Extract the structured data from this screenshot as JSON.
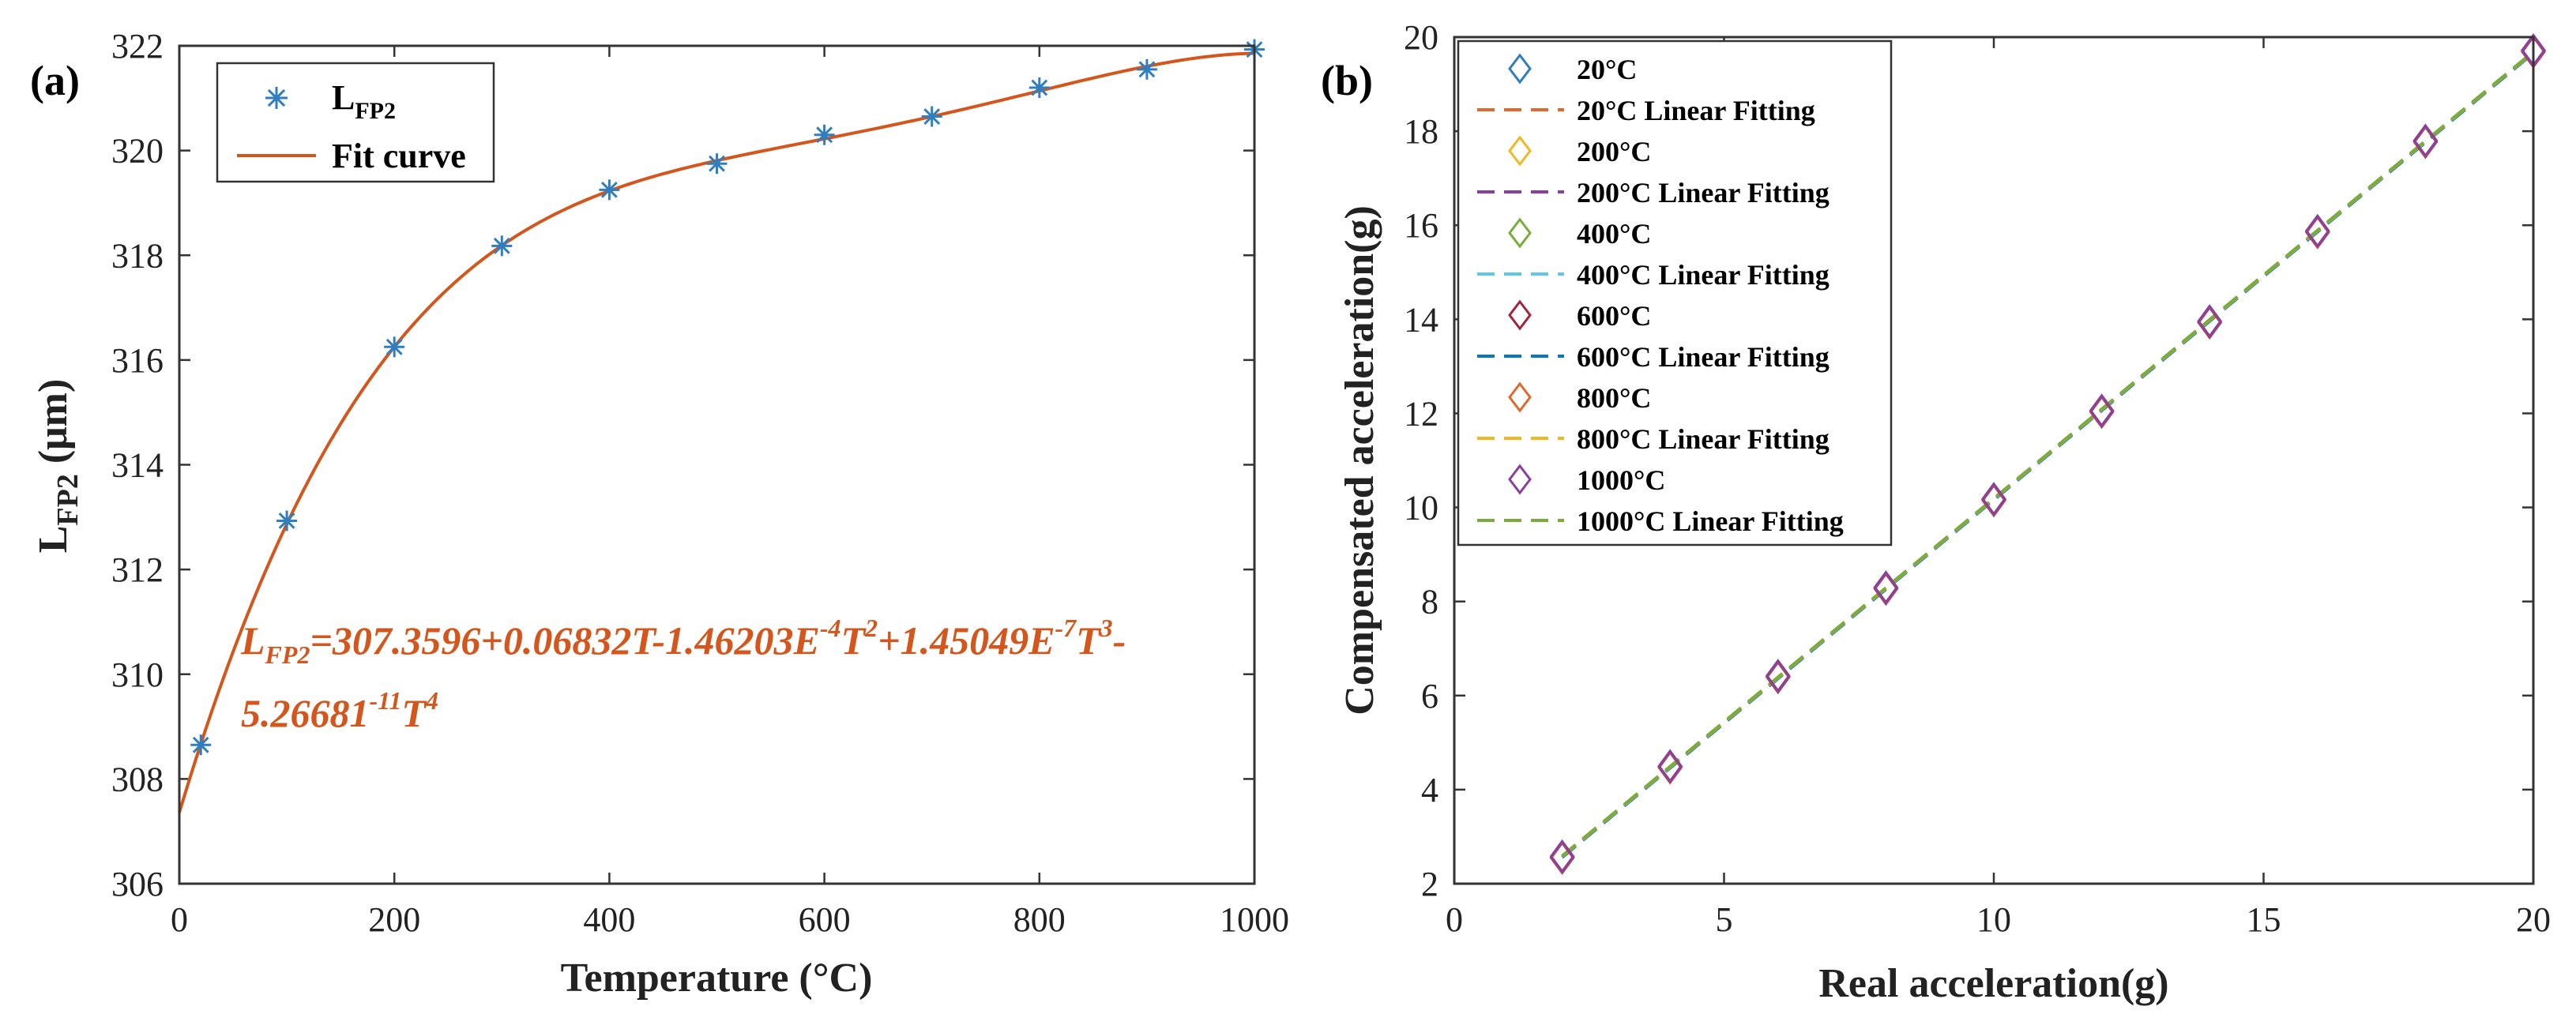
{
  "chart_data": [
    {
      "panel": "(a)",
      "type": "scatter",
      "xlabel": "Temperature (°C)",
      "ylabel_main": "L",
      "ylabel_sub": "FP2",
      "ylabel_unit": " (μm)",
      "xlim": [
        0,
        1000
      ],
      "ylim": [
        306,
        322
      ],
      "xticks": [
        0,
        200,
        400,
        600,
        800,
        1000
      ],
      "yticks": [
        306,
        308,
        310,
        312,
        314,
        316,
        318,
        320,
        322
      ],
      "series": [
        {
          "name": "LFP2",
          "legend_main": "L",
          "legend_sub": "FP2",
          "marker": "asterisk",
          "color": "#2f7ebf",
          "x": [
            20,
            100,
            200,
            300,
            400,
            500,
            600,
            700,
            800,
            900,
            1000
          ],
          "y": [
            308.65,
            312.93,
            316.25,
            318.18,
            319.25,
            319.75,
            320.3,
            320.65,
            321.2,
            321.55,
            321.93
          ]
        },
        {
          "name": "Fit curve",
          "type": "line",
          "color": "#d4561c",
          "coefficients": [
            307.3596,
            0.06832,
            -0.000146203,
            1.45049e-07,
            -5.26681e-11
          ]
        }
      ],
      "equation": {
        "line1": [
          {
            "t": "L",
            "s": "n"
          },
          {
            "t": "FP2",
            "s": "sub"
          },
          {
            "t": "=307.3596+0.06832T-1.46203E",
            "s": "n"
          },
          {
            "t": "-4",
            "s": "sup"
          },
          {
            "t": "T",
            "s": "n"
          },
          {
            "t": "2",
            "s": "sup"
          },
          {
            "t": "+1.45049E",
            "s": "n"
          },
          {
            "t": "-7",
            "s": "sup"
          },
          {
            "t": "T",
            "s": "n"
          },
          {
            "t": "3",
            "s": "sup"
          },
          {
            "t": "-",
            "s": "n"
          }
        ],
        "line2": [
          {
            "t": "5.26681",
            "s": "n"
          },
          {
            "t": "-11",
            "s": "sup"
          },
          {
            "t": "T",
            "s": "n"
          },
          {
            "t": "4",
            "s": "sup"
          }
        ]
      }
    },
    {
      "panel": "(b)",
      "type": "scatter",
      "xlabel": "Real acceleration(g)",
      "ylabel": "Compensated acceleration(g)",
      "xlim": [
        0,
        20
      ],
      "ylim": [
        2,
        20
      ],
      "xticks": [
        0,
        5,
        10,
        15,
        20
      ],
      "yticks": [
        2,
        4,
        6,
        8,
        10,
        12,
        14,
        16,
        18,
        20
      ],
      "x": [
        2,
        4,
        6,
        8,
        10,
        12,
        14,
        16,
        18,
        20
      ],
      "series": [
        {
          "name": "20°C",
          "fit_name": "20°C Linear Fitting",
          "marker_color": "#2f7ebf",
          "line_color": "#e06a2c",
          "y": [
            2.58,
            4.5,
            6.42,
            8.3,
            10.18,
            12.06,
            13.96,
            15.88,
            17.8,
            19.72
          ]
        },
        {
          "name": "200°C",
          "fit_name": "200°C Linear Fitting",
          "marker_color": "#f2b822",
          "line_color": "#8a3fa0",
          "y": [
            2.57,
            4.49,
            6.41,
            8.29,
            10.17,
            12.05,
            13.95,
            15.87,
            17.79,
            19.71
          ]
        },
        {
          "name": "400°C",
          "fit_name": "400°C Linear Fitting",
          "marker_color": "#78ad3a",
          "line_color": "#5ec7ec",
          "y": [
            2.56,
            4.48,
            6.4,
            8.28,
            10.16,
            12.04,
            13.94,
            15.86,
            17.78,
            19.7
          ]
        },
        {
          "name": "600°C",
          "fit_name": "600°C Linear Fitting",
          "marker_color": "#a3243d",
          "line_color": "#0b77bd",
          "y": [
            2.55,
            4.47,
            6.39,
            8.27,
            10.15,
            12.03,
            13.93,
            15.85,
            17.77,
            19.69
          ]
        },
        {
          "name": "800°C",
          "fit_name": "800°C Linear Fitting",
          "marker_color": "#e06a2c",
          "line_color": "#f2b822",
          "y": [
            2.57,
            4.49,
            6.41,
            8.29,
            10.17,
            12.05,
            13.95,
            15.87,
            17.79,
            19.71
          ]
        },
        {
          "name": "1000°C",
          "fit_name": "1000°C Linear Fitting",
          "marker_color": "#8a3fa0",
          "line_color": "#78ad3a",
          "y": [
            2.58,
            4.5,
            6.42,
            8.3,
            10.18,
            12.06,
            13.96,
            15.88,
            17.8,
            19.72
          ]
        }
      ]
    }
  ]
}
